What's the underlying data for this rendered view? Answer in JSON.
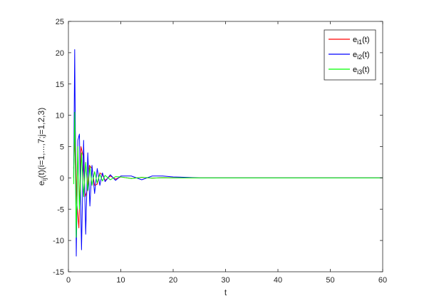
{
  "chart_data": {
    "type": "line",
    "title": "",
    "xlabel": "t",
    "ylabel": "e_ij(t)(i=1,...,7;j=1,2,3)",
    "xlim": [
      0,
      60
    ],
    "ylim": [
      -15,
      25
    ],
    "xticks": [
      0,
      10,
      20,
      30,
      40,
      50,
      60
    ],
    "yticks": [
      -15,
      -10,
      -5,
      0,
      5,
      10,
      15,
      20,
      25
    ],
    "grid": false,
    "legend_position": "top-right",
    "series": [
      {
        "name": "e_i1(t)",
        "color": "#ff0000",
        "x": [
          1.0,
          1.3,
          1.6,
          2.0,
          2.4,
          2.8,
          3.2,
          3.6,
          4.0,
          4.5,
          5.0,
          5.5,
          6.0,
          6.5,
          7.0,
          8.0,
          9.0,
          10.0,
          12.0,
          14.0,
          16.0,
          18.0,
          20.0,
          25.0,
          30.0,
          40.0,
          50.0,
          60.0
        ],
        "y": [
          1.5,
          7.5,
          -4.0,
          -8.0,
          5.0,
          3.5,
          -3.0,
          -2.0,
          2.0,
          1.5,
          -1.2,
          -1.0,
          0.8,
          0.5,
          -0.4,
          0.3,
          -0.2,
          0.15,
          -0.1,
          0.08,
          -0.05,
          0.03,
          0.0,
          0.0,
          0.0,
          0.0,
          0.0,
          0.0
        ]
      },
      {
        "name": "e_i2(t)",
        "color": "#0000ff",
        "x": [
          1.0,
          1.2,
          1.5,
          1.8,
          2.1,
          2.5,
          2.9,
          3.3,
          3.7,
          4.1,
          4.5,
          5.0,
          5.5,
          6.0,
          6.5,
          7.0,
          8.0,
          9.0,
          10.0,
          12.0,
          14.0,
          16.0,
          18.0,
          20.0,
          22.0,
          25.0,
          30.0,
          40.0,
          50.0,
          60.0
        ],
        "y": [
          0.0,
          20.5,
          -12.5,
          6.0,
          7.0,
          -11.5,
          6.0,
          -9.0,
          4.0,
          -4.5,
          2.0,
          -2.5,
          1.5,
          -1.2,
          0.8,
          -0.6,
          0.5,
          -0.4,
          0.3,
          0.3,
          -0.3,
          0.3,
          0.3,
          0.15,
          0.1,
          0.0,
          0.0,
          0.0,
          0.0,
          0.0
        ]
      },
      {
        "name": "e_i3(t)",
        "color": "#00ff00",
        "x": [
          1.0,
          1.2,
          1.5,
          1.8,
          2.1,
          2.5,
          2.9,
          3.3,
          3.7,
          4.1,
          4.5,
          5.0,
          5.5,
          6.0,
          6.5,
          7.0,
          8.0,
          9.0,
          10.0,
          12.0,
          14.0,
          16.0,
          18.0,
          20.0,
          25.0,
          30.0,
          40.0,
          50.0,
          60.0
        ],
        "y": [
          -1.0,
          10.5,
          -9.5,
          5.0,
          -5.0,
          4.0,
          -3.0,
          2.5,
          -2.0,
          1.8,
          -1.2,
          1.0,
          -0.8,
          0.6,
          -0.5,
          0.4,
          -0.3,
          0.2,
          0.15,
          -0.1,
          0.08,
          -0.05,
          0.03,
          0.0,
          0.0,
          0.0,
          0.0,
          0.0,
          0.0
        ]
      }
    ]
  }
}
